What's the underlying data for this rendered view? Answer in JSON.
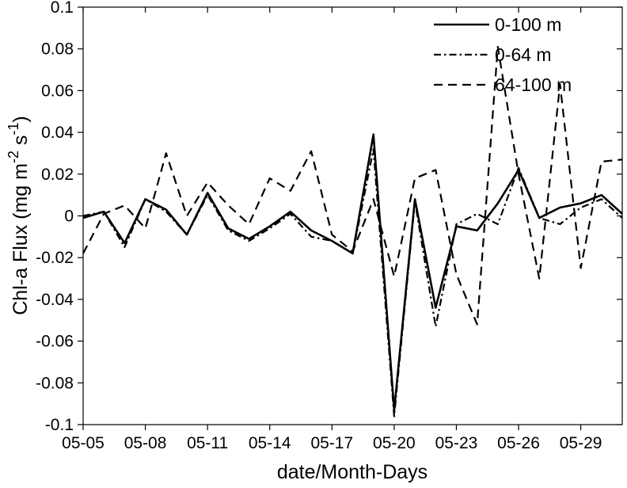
{
  "chart_data": {
    "type": "line",
    "title": "",
    "xlabel": "date/Month-Days",
    "ylabel": "Chl-a Flux (mg m-2 s-1)",
    "ylabel_parts": [
      {
        "text": "Chl-a Flux (mg m",
        "sup": false
      },
      {
        "text": "-2",
        "sup": true
      },
      {
        "text": " s",
        "sup": false
      },
      {
        "text": "-1",
        "sup": true
      },
      {
        "text": ")",
        "sup": false
      }
    ],
    "x": [
      "05-05",
      "05-06",
      "05-07",
      "05-08",
      "05-09",
      "05-10",
      "05-11",
      "05-12",
      "05-13",
      "05-14",
      "05-15",
      "05-16",
      "05-17",
      "05-18",
      "05-19",
      "05-20",
      "05-21",
      "05-22",
      "05-23",
      "05-24",
      "05-25",
      "05-26",
      "05-27",
      "05-28",
      "05-29",
      "05-30",
      "05-31"
    ],
    "xtick_labels": [
      "05-05",
      "05-08",
      "05-11",
      "05-14",
      "05-17",
      "05-20",
      "05-23",
      "05-26",
      "05-29"
    ],
    "xtick_indices": [
      0,
      3,
      6,
      9,
      12,
      15,
      18,
      21,
      24
    ],
    "ytick_values": [
      0.1,
      0.08,
      0.06,
      0.04,
      0.02,
      0,
      -0.02,
      -0.04,
      -0.06,
      -0.08,
      -0.1
    ],
    "ytick_labels": [
      "0.1",
      "0.08",
      "0.06",
      "0.04",
      "0.02",
      "0",
      "-0.02",
      "-0.04",
      "-0.06",
      "-0.08",
      "-0.1"
    ],
    "ylim": [
      -0.1,
      0.1
    ],
    "grid": false,
    "legend_position": "top-right",
    "line_color": "#000000",
    "background_color": "#ffffff",
    "series": [
      {
        "name": "0-100 m",
        "style": "solid",
        "values": [
          -0.001,
          0.002,
          -0.013,
          0.008,
          0.003,
          -0.009,
          0.011,
          -0.006,
          -0.011,
          -0.005,
          0.002,
          -0.007,
          -0.012,
          -0.018,
          0.039,
          -0.093,
          0.008,
          -0.044,
          -0.005,
          -0.007,
          0.006,
          0.022,
          -0.001,
          0.004,
          0.006,
          0.01,
          0.001
        ]
      },
      {
        "name": "0-64 m",
        "style": "dash-dot",
        "values": [
          0.0,
          0.002,
          -0.015,
          0.008,
          0.002,
          -0.009,
          0.01,
          -0.007,
          -0.012,
          -0.006,
          0.001,
          -0.01,
          -0.012,
          -0.018,
          0.032,
          -0.096,
          0.007,
          -0.053,
          -0.004,
          0.001,
          -0.004,
          0.023,
          -0.001,
          -0.004,
          0.004,
          0.008,
          -0.001
        ]
      },
      {
        "name": "64-100 m",
        "style": "dashed",
        "values": [
          -0.018,
          0.001,
          0.005,
          -0.006,
          0.03,
          0.0,
          0.016,
          0.005,
          -0.004,
          0.018,
          0.012,
          0.031,
          -0.009,
          -0.017,
          0.008,
          -0.029,
          0.018,
          0.022,
          -0.028,
          -0.052,
          0.081,
          0.02,
          -0.03,
          0.063,
          -0.025,
          0.026,
          0.027
        ]
      }
    ]
  }
}
